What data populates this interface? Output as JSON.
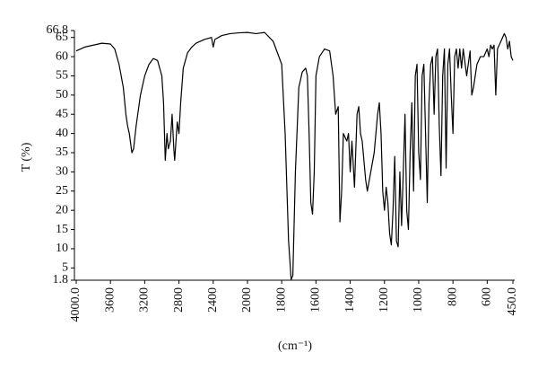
{
  "chart_data": {
    "type": "line",
    "ylabel": "T (%)",
    "xlabel": "(cm⁻¹)",
    "color": "#000000",
    "xlim": [
      4000,
      450
    ],
    "x_scale_break": {
      "value": 2000,
      "factor": 2
    },
    "xticks": [
      {
        "value": 4000,
        "label": "4000.0"
      },
      3600,
      3200,
      2800,
      2400,
      2000,
      1800,
      1600,
      1400,
      1200,
      1000,
      800,
      600,
      {
        "value": 450,
        "label": "450.0"
      }
    ],
    "ylim": [
      1.8,
      66.8
    ],
    "yticks": [
      1.8,
      5,
      10,
      15,
      20,
      25,
      30,
      35,
      40,
      45,
      50,
      55,
      60,
      65,
      66.8
    ],
    "x": [
      4000,
      3900,
      3800,
      3700,
      3600,
      3550,
      3500,
      3450,
      3420,
      3400,
      3380,
      3350,
      3330,
      3300,
      3250,
      3200,
      3150,
      3100,
      3050,
      3000,
      2980,
      2960,
      2940,
      2925,
      2900,
      2880,
      2860,
      2850,
      2820,
      2800,
      2780,
      2750,
      2700,
      2650,
      2600,
      2500,
      2420,
      2400,
      2380,
      2300,
      2200,
      2100,
      2000,
      1950,
      1900,
      1850,
      1800,
      1780,
      1760,
      1745,
      1735,
      1720,
      1700,
      1680,
      1660,
      1650,
      1640,
      1630,
      1620,
      1610,
      1600,
      1580,
      1550,
      1520,
      1500,
      1485,
      1470,
      1460,
      1450,
      1440,
      1420,
      1410,
      1400,
      1390,
      1375,
      1360,
      1350,
      1340,
      1330,
      1310,
      1300,
      1280,
      1260,
      1240,
      1230,
      1220,
      1210,
      1200,
      1190,
      1180,
      1170,
      1160,
      1150,
      1140,
      1130,
      1120,
      1110,
      1100,
      1090,
      1080,
      1070,
      1060,
      1050,
      1040,
      1030,
      1020,
      1010,
      1000,
      990,
      980,
      970,
      960,
      950,
      940,
      930,
      920,
      910,
      900,
      890,
      880,
      870,
      860,
      850,
      840,
      830,
      820,
      810,
      800,
      790,
      780,
      770,
      760,
      750,
      740,
      720,
      700,
      690,
      680,
      660,
      640,
      620,
      600,
      590,
      580,
      570,
      560,
      550,
      540,
      520,
      500,
      490,
      480,
      470,
      460,
      450
    ],
    "values": [
      61.5,
      62.5,
      63,
      63.5,
      63.3,
      62,
      58,
      52,
      45,
      42,
      40,
      35,
      36,
      42,
      50,
      55,
      58,
      59.5,
      59,
      55,
      48,
      33,
      40,
      36,
      38,
      45,
      36,
      33,
      43,
      40,
      48,
      57,
      61,
      62.5,
      63.5,
      64.5,
      65,
      62.5,
      64.5,
      65.5,
      66,
      66.2,
      66.3,
      66,
      66.3,
      64,
      58,
      40,
      12,
      2,
      3,
      30,
      52,
      56,
      57,
      55,
      40,
      22,
      19,
      30,
      55,
      60,
      62,
      61.5,
      55,
      45,
      47,
      17,
      25,
      40,
      38,
      40,
      30,
      38,
      26,
      45,
      47,
      40,
      38,
      28,
      25,
      30,
      35,
      45,
      48,
      40,
      25,
      20,
      26,
      22,
      14,
      11,
      20,
      34,
      12,
      10.5,
      30,
      16,
      30,
      45,
      20,
      15,
      35,
      48,
      25,
      55,
      58,
      35,
      28,
      55,
      58,
      40,
      22,
      48,
      58,
      60,
      45,
      60,
      62,
      42,
      29,
      55,
      62,
      31,
      58,
      62,
      50,
      40,
      60,
      62,
      57,
      62,
      57,
      62,
      55,
      61.5,
      50,
      52,
      58,
      60,
      60,
      62,
      60,
      63,
      62,
      63,
      50,
      62,
      64,
      66,
      65,
      62,
      64,
      60,
      59
    ]
  }
}
